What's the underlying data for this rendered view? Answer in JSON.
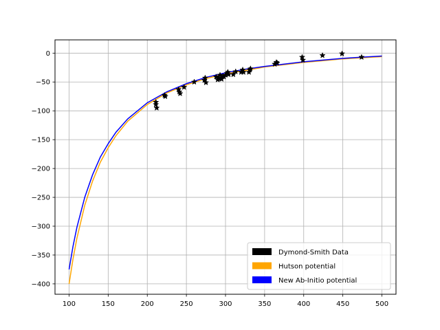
{
  "chart_data": {
    "type": "line",
    "title": "",
    "xlabel": "",
    "ylabel": "",
    "xlim": [
      82,
      518
    ],
    "ylim": [
      -418,
      23
    ],
    "grid": true,
    "legend_position": "lower-right",
    "x_ticks": [
      100,
      150,
      200,
      250,
      300,
      350,
      400,
      450,
      500
    ],
    "y_ticks": [
      0,
      -50,
      -100,
      -150,
      -200,
      -250,
      -300,
      -350,
      -400
    ],
    "x_tick_labels": [
      "100",
      "150",
      "200",
      "250",
      "300",
      "350",
      "400",
      "450",
      "500"
    ],
    "y_tick_labels": [
      "0",
      "−50",
      "−100",
      "−150",
      "−200",
      "−250",
      "−300",
      "−350",
      "−400"
    ],
    "series": [
      {
        "name": "Dymond-Smith Data",
        "kind": "scatter",
        "marker": "star",
        "color": "#000000",
        "points": [
          [
            211,
            -85
          ],
          [
            211,
            -89
          ],
          [
            212,
            -95
          ],
          [
            222,
            -73
          ],
          [
            223,
            -75
          ],
          [
            240,
            -63
          ],
          [
            241,
            -67
          ],
          [
            242,
            -70
          ],
          [
            247,
            -59
          ],
          [
            260,
            -50
          ],
          [
            273,
            -47
          ],
          [
            274,
            -43
          ],
          [
            275,
            -51
          ],
          [
            288,
            -41
          ],
          [
            290,
            -46
          ],
          [
            291,
            -43
          ],
          [
            293,
            -38
          ],
          [
            294,
            -44
          ],
          [
            295,
            -45
          ],
          [
            297,
            -40
          ],
          [
            298,
            -41
          ],
          [
            300,
            -38
          ],
          [
            302,
            -35
          ],
          [
            303,
            -33
          ],
          [
            304,
            -37
          ],
          [
            310,
            -37
          ],
          [
            313,
            -32
          ],
          [
            320,
            -33
          ],
          [
            322,
            -29
          ],
          [
            323,
            -33
          ],
          [
            330,
            -33
          ],
          [
            331,
            -29
          ],
          [
            332,
            -27
          ],
          [
            363,
            -19
          ],
          [
            365,
            -16
          ],
          [
            366,
            -17
          ],
          [
            398,
            -7
          ],
          [
            399,
            -12
          ],
          [
            424,
            -4
          ],
          [
            449,
            -1
          ],
          [
            474,
            -7
          ]
        ]
      },
      {
        "name": "Hutson potential",
        "kind": "line",
        "color": "#ffa500",
        "x": [
          100,
          105,
          110,
          120,
          130,
          140,
          150,
          160,
          175,
          200,
          225,
          250,
          275,
          300,
          325,
          350,
          375,
          400,
          425,
          450,
          475,
          500
        ],
        "y": [
          -400,
          -357,
          -321,
          -264,
          -222,
          -189,
          -164,
          -143,
          -118,
          -89,
          -69,
          -55,
          -44,
          -36,
          -30,
          -24,
          -20,
          -16,
          -13,
          -10,
          -8,
          -6
        ]
      },
      {
        "name": "New Ab-Initio potential",
        "kind": "line",
        "color": "#0000ff",
        "x": [
          100,
          105,
          110,
          120,
          130,
          140,
          150,
          160,
          175,
          200,
          225,
          250,
          275,
          300,
          325,
          350,
          375,
          400,
          425,
          450,
          475,
          500
        ],
        "y": [
          -375,
          -335,
          -302,
          -250,
          -211,
          -180,
          -157,
          -137,
          -114,
          -86,
          -67,
          -53,
          -42,
          -34,
          -28,
          -23,
          -19,
          -15,
          -12,
          -9,
          -7,
          -5
        ]
      }
    ]
  }
}
